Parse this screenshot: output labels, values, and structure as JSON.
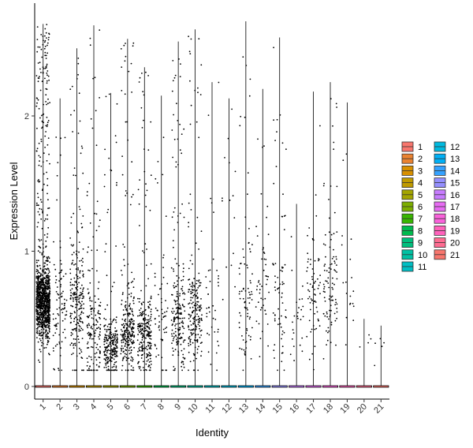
{
  "chart_data": {
    "type": "violin",
    "title": "",
    "xlabel": "Identity",
    "ylabel": "Expression Level",
    "categories": [
      "1",
      "2",
      "3",
      "4",
      "5",
      "6",
      "7",
      "8",
      "9",
      "10",
      "11",
      "12",
      "13",
      "14",
      "15",
      "16",
      "17",
      "18",
      "19",
      "20",
      "21"
    ],
    "y_ticks": [
      0,
      1,
      2
    ],
    "ylim": [
      -0.1,
      2.85
    ],
    "grid": false,
    "legend_position": "right",
    "colors": [
      "#F8766D",
      "#EA8331",
      "#D89000",
      "#C09B00",
      "#A3A500",
      "#7CAE00",
      "#39B600",
      "#00BB4E",
      "#00BF7D",
      "#00C1A3",
      "#00BFC4",
      "#00BAE0",
      "#00B0F6",
      "#35A2FF",
      "#9590FF",
      "#C77CFF",
      "#E76BF3",
      "#FA62DB",
      "#FF62BC",
      "#FF6C91",
      "#F8766D"
    ],
    "series": [
      {
        "name": "1",
        "max": 2.68,
        "n_points": 1100,
        "center": 0.62,
        "spread": 0.22
      },
      {
        "name": "2",
        "max": 2.13,
        "n_points": 90,
        "center": 0.55,
        "spread": 0.35
      },
      {
        "name": "3",
        "max": 2.5,
        "n_points": 230,
        "center": 0.6,
        "spread": 0.4
      },
      {
        "name": "4",
        "max": 2.67,
        "n_points": 160,
        "center": 0.42,
        "spread": 0.3
      },
      {
        "name": "5",
        "max": 2.17,
        "n_points": 240,
        "center": 0.3,
        "spread": 0.18
      },
      {
        "name": "6",
        "max": 2.57,
        "n_points": 260,
        "center": 0.4,
        "spread": 0.25
      },
      {
        "name": "7",
        "max": 2.36,
        "n_points": 260,
        "center": 0.38,
        "spread": 0.22
      },
      {
        "name": "8",
        "max": 2.15,
        "n_points": 60,
        "center": 0.45,
        "spread": 0.35
      },
      {
        "name": "9",
        "max": 2.55,
        "n_points": 210,
        "center": 0.48,
        "spread": 0.3
      },
      {
        "name": "10",
        "max": 2.64,
        "n_points": 200,
        "center": 0.5,
        "spread": 0.3
      },
      {
        "name": "11",
        "max": 2.25,
        "n_points": 40,
        "center": 0.55,
        "spread": 0.35
      },
      {
        "name": "12",
        "max": 2.13,
        "n_points": 15,
        "center": 1.2,
        "spread": 0.6
      },
      {
        "name": "13",
        "max": 2.7,
        "n_points": 80,
        "center": 0.6,
        "spread": 0.4
      },
      {
        "name": "14",
        "max": 2.2,
        "n_points": 50,
        "center": 0.7,
        "spread": 0.45
      },
      {
        "name": "15",
        "max": 2.58,
        "n_points": 70,
        "center": 0.65,
        "spread": 0.45
      },
      {
        "name": "16",
        "max": 1.35,
        "n_points": 25,
        "center": 0.45,
        "spread": 0.3
      },
      {
        "name": "17",
        "max": 2.18,
        "n_points": 70,
        "center": 0.7,
        "spread": 0.35
      },
      {
        "name": "18",
        "max": 2.25,
        "n_points": 100,
        "center": 0.7,
        "spread": 0.35
      },
      {
        "name": "19",
        "max": 2.1,
        "n_points": 20,
        "center": 0.55,
        "spread": 0.4
      },
      {
        "name": "20",
        "max": 0.5,
        "n_points": 4,
        "center": 0.3,
        "spread": 0.1
      },
      {
        "name": "21",
        "max": 0.45,
        "n_points": 5,
        "center": 0.3,
        "spread": 0.1
      }
    ]
  }
}
